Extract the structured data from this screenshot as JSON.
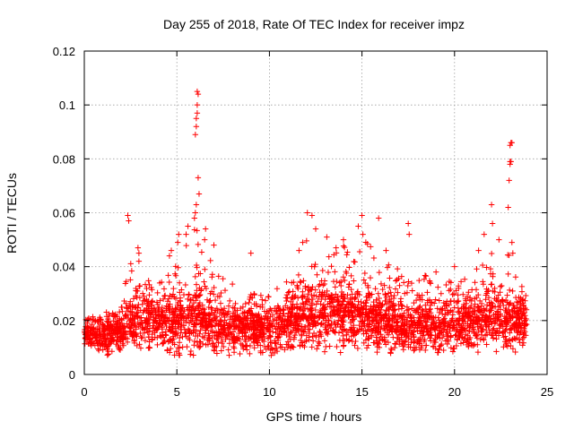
{
  "chart_data": {
    "type": "scatter",
    "title": "Day 255 of 2018, Rate Of TEC Index for receiver impz",
    "xlabel": "GPS time / hours",
    "ylabel": "ROTI / TECUs",
    "xlim": [
      0,
      25
    ],
    "ylim": [
      0,
      0.12
    ],
    "x_ticks": [
      0,
      5,
      10,
      15,
      20,
      25
    ],
    "x_tick_labels": [
      "0",
      "5",
      "10",
      "15",
      "20",
      "25"
    ],
    "y_ticks": [
      0,
      0.02,
      0.04,
      0.06,
      0.08,
      0.1,
      0.12
    ],
    "y_tick_labels": [
      "0",
      "0.02",
      "0.04",
      "0.06",
      "0.08",
      "0.1",
      "0.12"
    ],
    "grid": true,
    "marker": "+",
    "color": "#ff0000",
    "x_range_observed": [
      0,
      23.9
    ],
    "envelope": [
      {
        "x": 0.0,
        "low": 0.01,
        "mid": 0.015,
        "high": 0.02
      },
      {
        "x": 1.0,
        "low": 0.006,
        "mid": 0.014,
        "high": 0.024
      },
      {
        "x": 2.0,
        "low": 0.008,
        "mid": 0.016,
        "high": 0.025
      },
      {
        "x": 2.5,
        "low": 0.009,
        "mid": 0.02,
        "high": 0.045
      },
      {
        "x": 3.0,
        "low": 0.009,
        "mid": 0.02,
        "high": 0.035
      },
      {
        "x": 4.0,
        "low": 0.008,
        "mid": 0.019,
        "high": 0.035
      },
      {
        "x": 5.0,
        "low": 0.007,
        "mid": 0.02,
        "high": 0.045
      },
      {
        "x": 6.0,
        "low": 0.007,
        "mid": 0.02,
        "high": 0.055
      },
      {
        "x": 7.0,
        "low": 0.007,
        "mid": 0.018,
        "high": 0.04
      },
      {
        "x": 8.0,
        "low": 0.007,
        "mid": 0.017,
        "high": 0.035
      },
      {
        "x": 9.0,
        "low": 0.007,
        "mid": 0.017,
        "high": 0.03
      },
      {
        "x": 10.0,
        "low": 0.007,
        "mid": 0.017,
        "high": 0.03
      },
      {
        "x": 11.0,
        "low": 0.007,
        "mid": 0.018,
        "high": 0.035
      },
      {
        "x": 12.0,
        "low": 0.008,
        "mid": 0.021,
        "high": 0.05
      },
      {
        "x": 13.0,
        "low": 0.008,
        "mid": 0.022,
        "high": 0.045
      },
      {
        "x": 14.0,
        "low": 0.008,
        "mid": 0.022,
        "high": 0.048
      },
      {
        "x": 15.0,
        "low": 0.008,
        "mid": 0.021,
        "high": 0.05
      },
      {
        "x": 16.0,
        "low": 0.008,
        "mid": 0.02,
        "high": 0.048
      },
      {
        "x": 17.0,
        "low": 0.007,
        "mid": 0.018,
        "high": 0.04
      },
      {
        "x": 18.0,
        "low": 0.007,
        "mid": 0.018,
        "high": 0.038
      },
      {
        "x": 19.0,
        "low": 0.007,
        "mid": 0.017,
        "high": 0.035
      },
      {
        "x": 20.0,
        "low": 0.007,
        "mid": 0.018,
        "high": 0.035
      },
      {
        "x": 21.0,
        "low": 0.008,
        "mid": 0.019,
        "high": 0.038
      },
      {
        "x": 22.0,
        "low": 0.008,
        "mid": 0.02,
        "high": 0.045
      },
      {
        "x": 23.0,
        "low": 0.008,
        "mid": 0.02,
        "high": 0.045
      },
      {
        "x": 23.9,
        "low": 0.008,
        "mid": 0.018,
        "high": 0.03
      }
    ],
    "outliers": [
      {
        "x": 2.35,
        "y": 0.059
      },
      {
        "x": 2.4,
        "y": 0.057
      },
      {
        "x": 2.9,
        "y": 0.047
      },
      {
        "x": 2.95,
        "y": 0.045
      },
      {
        "x": 2.95,
        "y": 0.042
      },
      {
        "x": 4.6,
        "y": 0.044
      },
      {
        "x": 4.7,
        "y": 0.046
      },
      {
        "x": 5.05,
        "y": 0.049
      },
      {
        "x": 5.1,
        "y": 0.052
      },
      {
        "x": 5.5,
        "y": 0.052
      },
      {
        "x": 5.6,
        "y": 0.055
      },
      {
        "x": 5.95,
        "y": 0.058
      },
      {
        "x": 6.0,
        "y": 0.06
      },
      {
        "x": 6.05,
        "y": 0.063
      },
      {
        "x": 6.0,
        "y": 0.089
      },
      {
        "x": 6.05,
        "y": 0.092
      },
      {
        "x": 6.05,
        "y": 0.095
      },
      {
        "x": 6.1,
        "y": 0.097
      },
      {
        "x": 6.1,
        "y": 0.1
      },
      {
        "x": 6.1,
        "y": 0.105
      },
      {
        "x": 6.15,
        "y": 0.104
      },
      {
        "x": 6.15,
        "y": 0.073
      },
      {
        "x": 6.2,
        "y": 0.067
      },
      {
        "x": 6.5,
        "y": 0.05
      },
      {
        "x": 6.55,
        "y": 0.054
      },
      {
        "x": 7.0,
        "y": 0.048
      },
      {
        "x": 9.0,
        "y": 0.045
      },
      {
        "x": 11.6,
        "y": 0.046
      },
      {
        "x": 11.8,
        "y": 0.049
      },
      {
        "x": 12.05,
        "y": 0.06
      },
      {
        "x": 12.3,
        "y": 0.059
      },
      {
        "x": 12.5,
        "y": 0.054
      },
      {
        "x": 13.1,
        "y": 0.051
      },
      {
        "x": 13.6,
        "y": 0.047
      },
      {
        "x": 14.0,
        "y": 0.05
      },
      {
        "x": 14.8,
        "y": 0.055
      },
      {
        "x": 15.0,
        "y": 0.059
      },
      {
        "x": 15.05,
        "y": 0.052
      },
      {
        "x": 15.9,
        "y": 0.058
      },
      {
        "x": 16.3,
        "y": 0.046
      },
      {
        "x": 17.5,
        "y": 0.056
      },
      {
        "x": 17.55,
        "y": 0.052
      },
      {
        "x": 19.0,
        "y": 0.038
      },
      {
        "x": 20.0,
        "y": 0.04
      },
      {
        "x": 21.3,
        "y": 0.046
      },
      {
        "x": 21.6,
        "y": 0.052
      },
      {
        "x": 22.0,
        "y": 0.063
      },
      {
        "x": 22.05,
        "y": 0.056
      },
      {
        "x": 22.4,
        "y": 0.05
      },
      {
        "x": 22.9,
        "y": 0.062
      },
      {
        "x": 22.95,
        "y": 0.072
      },
      {
        "x": 23.0,
        "y": 0.078
      },
      {
        "x": 23.0,
        "y": 0.079
      },
      {
        "x": 23.05,
        "y": 0.079
      },
      {
        "x": 23.0,
        "y": 0.085
      },
      {
        "x": 23.05,
        "y": 0.086
      },
      {
        "x": 23.1,
        "y": 0.086
      },
      {
        "x": 23.1,
        "y": 0.049
      },
      {
        "x": 23.15,
        "y": 0.045
      }
    ]
  }
}
